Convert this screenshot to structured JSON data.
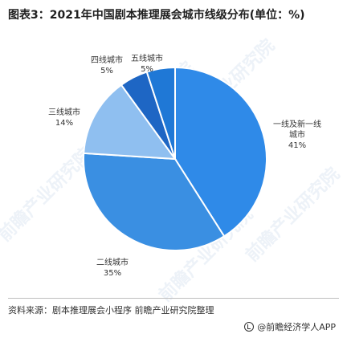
{
  "title": "图表3：2021年中国剧本推理展会城市线级分布(单位：%)",
  "chart_data": {
    "type": "pie",
    "title": "图表3：2021年中国剧本推理展会城市线级分布(单位：%)",
    "slices": [
      {
        "label": "一线及新一线城市",
        "label_lines": [
          "一线及新一线",
          "城市"
        ],
        "value": 41,
        "value_label": "41%",
        "color": "#2f8ae8"
      },
      {
        "label": "二线城市",
        "label_lines": [
          "二线城市"
        ],
        "value": 35,
        "value_label": "35%",
        "color": "#3a8fe2"
      },
      {
        "label": "三线城市",
        "label_lines": [
          "三线城市"
        ],
        "value": 14,
        "value_label": "14%",
        "color": "#8fbff0"
      },
      {
        "label": "四线城市",
        "label_lines": [
          "四线城市"
        ],
        "value": 5,
        "value_label": "5%",
        "color": "#1e66c4"
      },
      {
        "label": "五线城市",
        "label_lines": [
          "五线城市"
        ],
        "value": 5,
        "value_label": "5%",
        "color": "#1f78d6"
      }
    ]
  },
  "watermark": "前瞻产业研究院",
  "source": "资料来源：剧本推理展会小程序 前瞻产业研究院整理",
  "brand": {
    "icon": "qianzhan-logo-icon",
    "text": "@前瞻经济学人APP"
  }
}
